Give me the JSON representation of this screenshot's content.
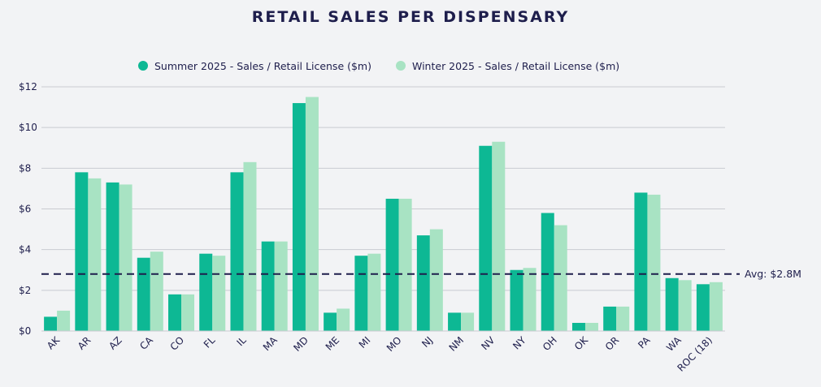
{
  "chart_data": {
    "type": "bar",
    "title": "RETAIL SALES PER DISPENSARY",
    "categories": [
      "AK",
      "AR",
      "AZ",
      "CA",
      "CO",
      "FL",
      "IL",
      "MA",
      "MD",
      "ME",
      "MI",
      "MO",
      "NJ",
      "NM",
      "NV",
      "NY",
      "OH",
      "OK",
      "OR",
      "PA",
      "WA",
      "ROC (18)"
    ],
    "series": [
      {
        "name": "Summer 2025 - Sales / Retail License ($m)",
        "color": "#0db894",
        "values": [
          0.7,
          7.8,
          7.3,
          3.6,
          1.8,
          3.8,
          7.8,
          4.4,
          11.2,
          0.9,
          3.7,
          6.5,
          4.7,
          0.9,
          9.1,
          3.0,
          5.8,
          0.4,
          1.2,
          6.8,
          2.6,
          2.3
        ]
      },
      {
        "name": "Winter 2025 - Sales / Retail License ($m)",
        "color": "#a8e3c3",
        "values": [
          1.0,
          7.5,
          7.2,
          3.9,
          1.8,
          3.7,
          8.3,
          4.4,
          11.5,
          1.1,
          3.8,
          6.5,
          5.0,
          0.9,
          9.3,
          3.1,
          5.2,
          0.4,
          1.2,
          6.7,
          2.5,
          2.4
        ]
      }
    ],
    "y_ticks": [
      "$0",
      "$2",
      "$4",
      "$6",
      "$8",
      "$10",
      "$12"
    ],
    "ylim": [
      0,
      12
    ],
    "average": {
      "value": 2.8,
      "label": "Avg: $2.8M"
    },
    "grid": true,
    "legend_position": "top-center"
  }
}
